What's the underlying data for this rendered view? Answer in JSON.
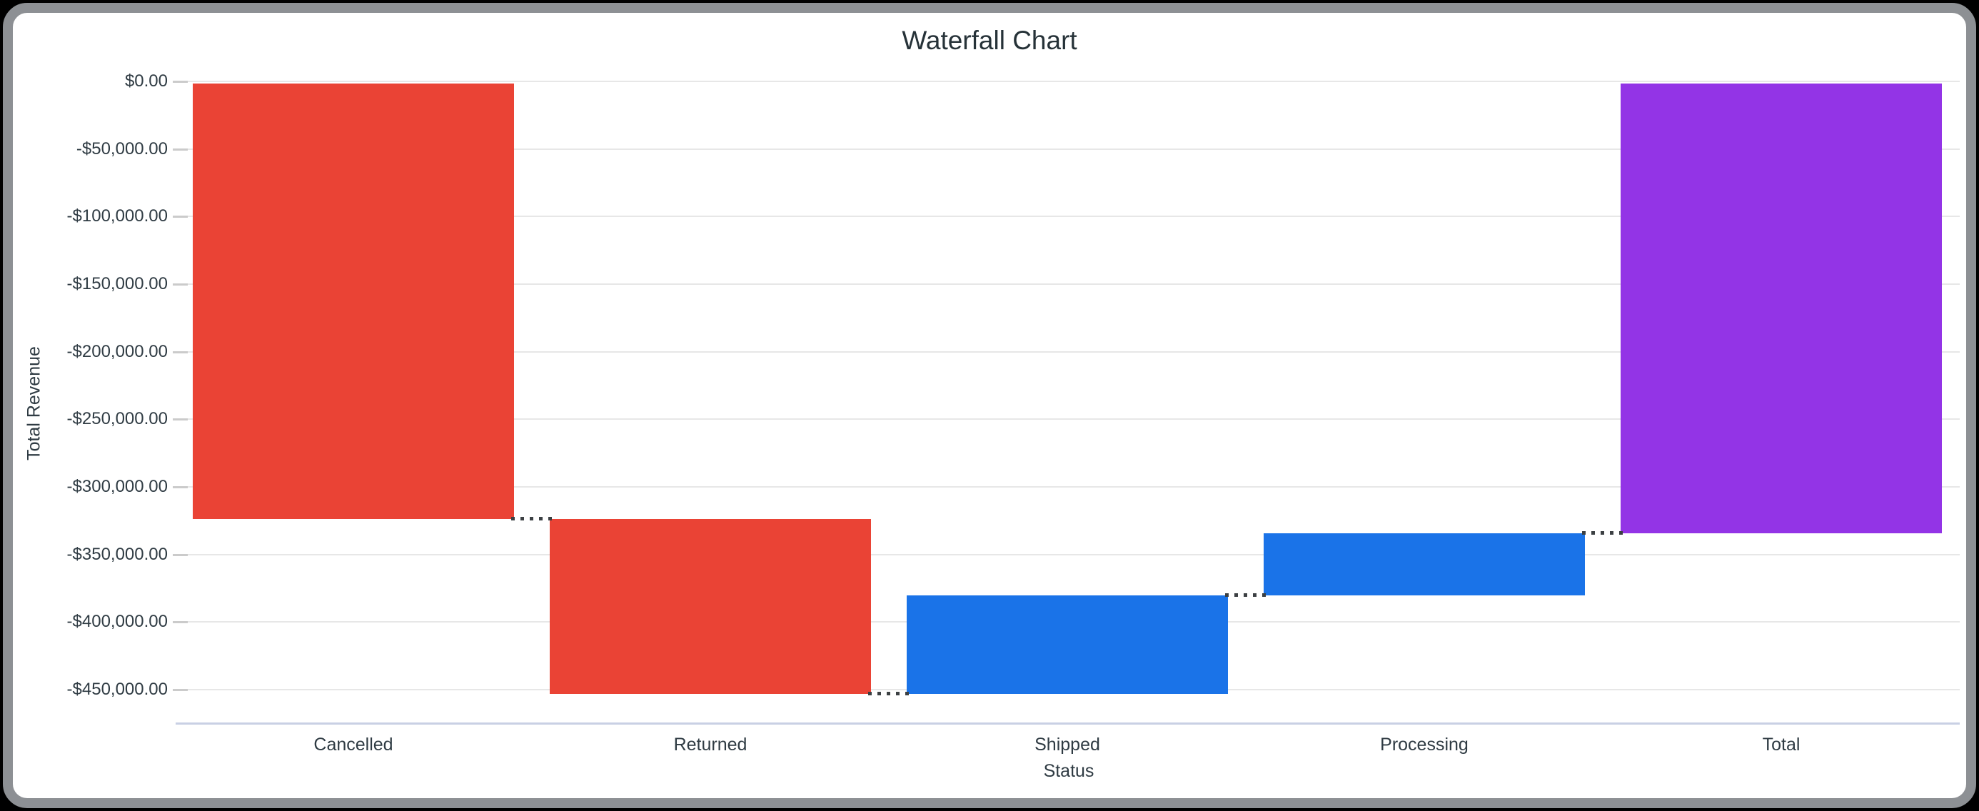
{
  "window": {
    "background": "#000000",
    "frame_border_color": "#8D9094",
    "card_background": "#FFFFFF"
  },
  "chart_data": {
    "type": "waterfall",
    "title": "Waterfall Chart",
    "xlabel": "Status",
    "ylabel": "Total Revenue",
    "categories": [
      "Cancelled",
      "Returned",
      "Shipped",
      "Processing",
      "Total"
    ],
    "bars": [
      {
        "label": "Cancelled",
        "delta": -323800,
        "kind": "decrease"
      },
      {
        "label": "Returned",
        "delta": -129400,
        "kind": "decrease"
      },
      {
        "label": "Shipped",
        "delta": 72900,
        "kind": "increase"
      },
      {
        "label": "Processing",
        "delta": 46000,
        "kind": "increase"
      },
      {
        "label": "Total",
        "delta": -334300,
        "kind": "total"
      }
    ],
    "cumulative_levels": [
      -323800,
      -453200,
      -380300,
      -334300,
      -334300
    ],
    "y_ticks": [
      {
        "label": "$0.00",
        "value": 0
      },
      {
        "label": "-$50,000.00",
        "value": -50000
      },
      {
        "label": "-$100,000.00",
        "value": -100000
      },
      {
        "label": "-$150,000.00",
        "value": -150000
      },
      {
        "label": "-$200,000.00",
        "value": -200000
      },
      {
        "label": "-$250,000.00",
        "value": -250000
      },
      {
        "label": "-$300,000.00",
        "value": -300000
      },
      {
        "label": "-$350,000.00",
        "value": -350000
      },
      {
        "label": "-$400,000.00",
        "value": -400000
      },
      {
        "label": "-$450,000.00",
        "value": -450000
      }
    ],
    "ylim": [
      -477000,
      0
    ],
    "grid": true,
    "legend": "none",
    "connector_style": "dotted",
    "colors": {
      "decrease": "#EA4335",
      "increase": "#1A73E8",
      "total": "#9334E6"
    },
    "gridline_color": "#E7E7E7",
    "tick_color": "#CBCBCB",
    "baseline_color": "#C9D0E4",
    "connector_color": "#3C4043",
    "text_colors": {
      "title": "#263238",
      "labels": "#2F3B43"
    }
  }
}
